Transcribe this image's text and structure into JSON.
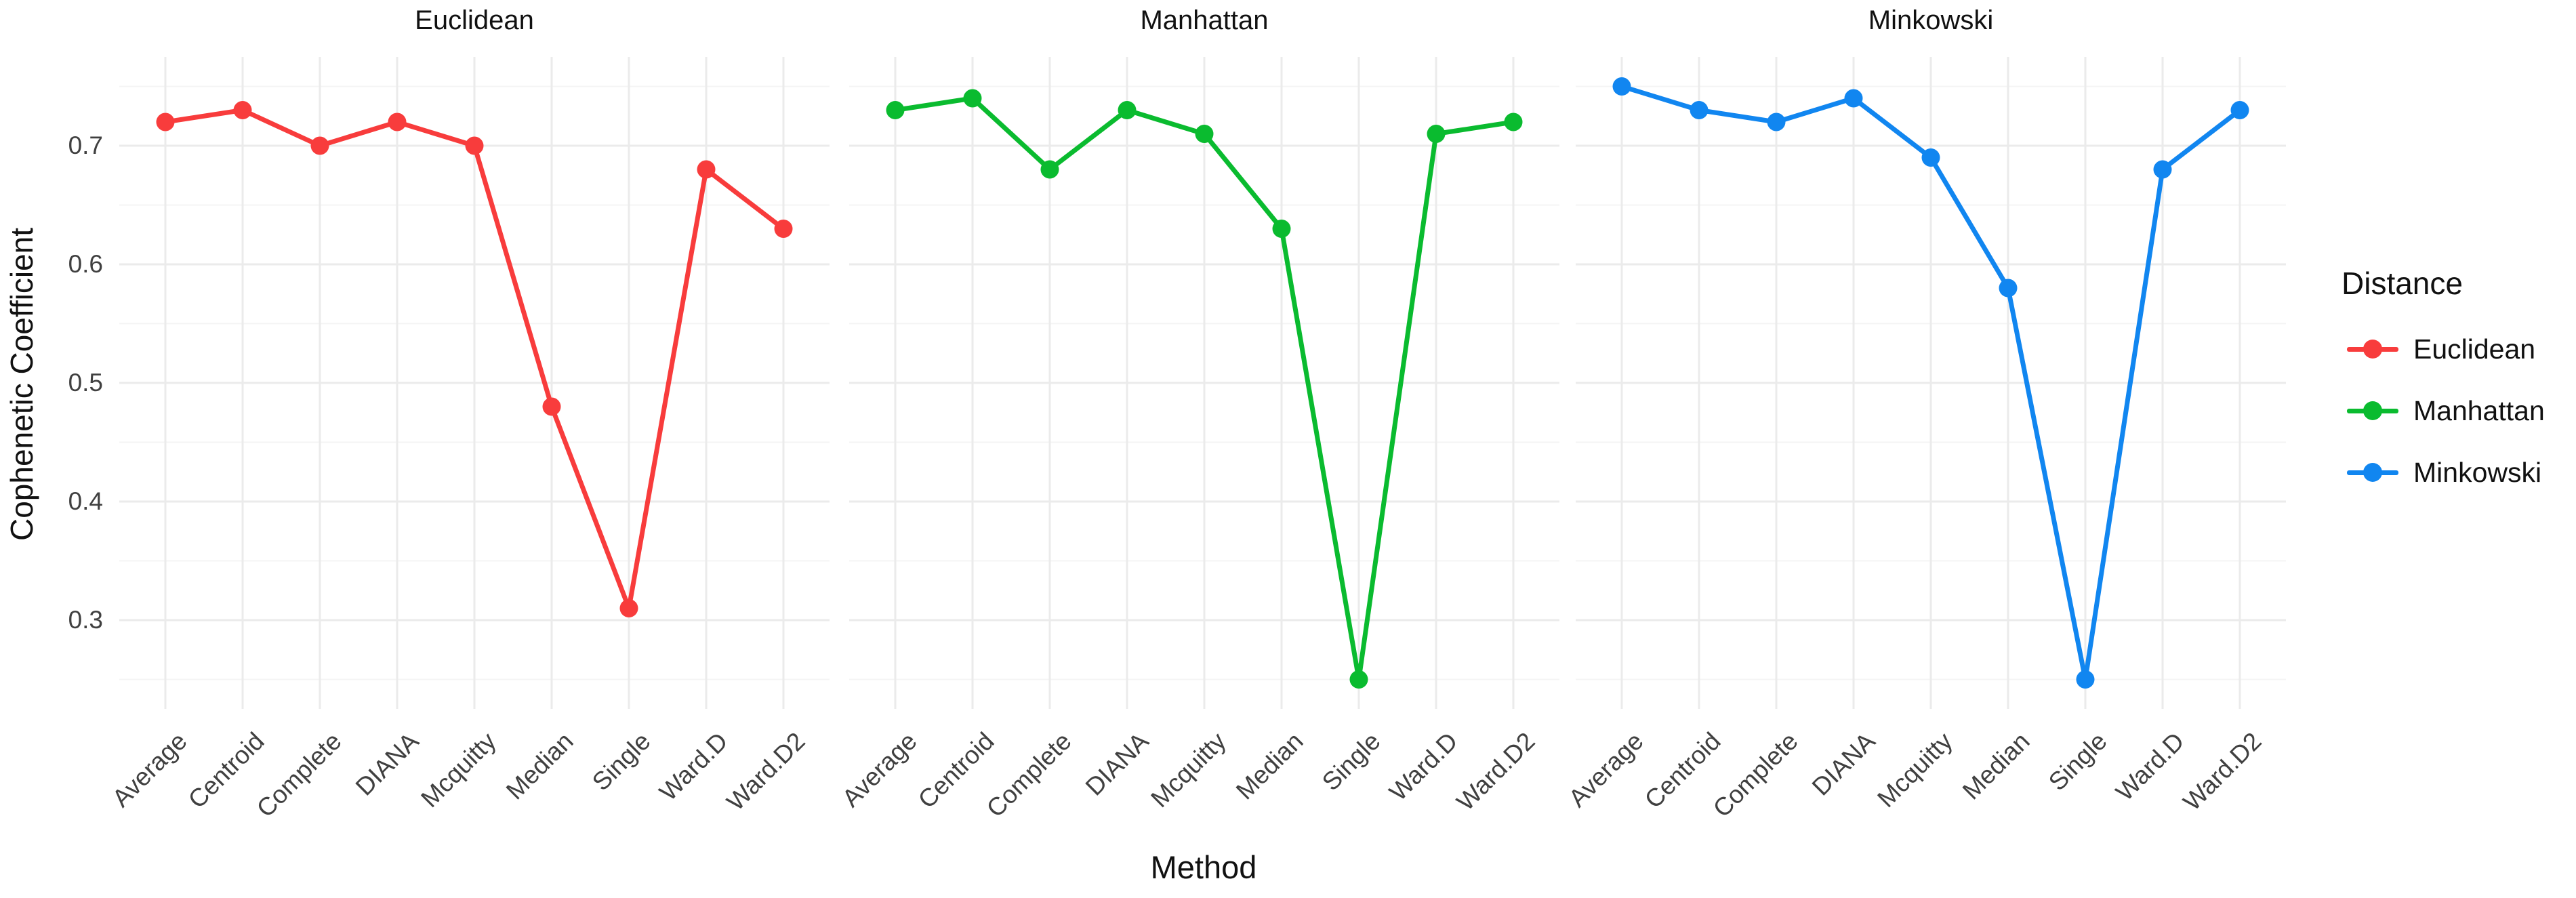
{
  "chart_data": {
    "type": "line",
    "title": "",
    "xlabel": "Method",
    "ylabel": "Cophenetic Coefficient",
    "categories": [
      "Average",
      "Centroid",
      "Complete",
      "DIANA",
      "Mcquitty",
      "Median",
      "Single",
      "Ward.D",
      "Ward.D2"
    ],
    "y_axis": {
      "tick_labels": [
        "0.7",
        "0.6",
        "0.5",
        "0.4",
        "0.3"
      ],
      "tick_values": [
        0.7,
        0.6,
        0.5,
        0.4,
        0.3
      ],
      "minor_tick_values": [
        0.75,
        0.65,
        0.55,
        0.45,
        0.35,
        0.25
      ],
      "ylim": [
        0.225,
        0.775
      ],
      "grid": true
    },
    "facets": [
      {
        "title": "Euclidean",
        "series": "Euclidean",
        "color": "#f83c3c",
        "values": [
          0.72,
          0.73,
          0.7,
          0.72,
          0.7,
          0.48,
          0.31,
          0.68,
          0.63
        ]
      },
      {
        "title": "Manhattan",
        "series": "Manhattan",
        "color": "#0abb2f",
        "values": [
          0.73,
          0.74,
          0.68,
          0.73,
          0.71,
          0.63,
          0.25,
          0.71,
          0.72
        ]
      },
      {
        "title": "Minkowski",
        "series": "Minkowski",
        "color": "#1186f0",
        "values": [
          0.75,
          0.73,
          0.72,
          0.74,
          0.69,
          0.58,
          0.25,
          0.68,
          0.73
        ]
      }
    ],
    "legend": {
      "title": "Distance",
      "position": "right",
      "entries": [
        {
          "label": "Euclidean",
          "color": "#f83c3c"
        },
        {
          "label": "Manhattan",
          "color": "#0abb2f"
        },
        {
          "label": "Minkowski",
          "color": "#1186f0"
        }
      ]
    },
    "style": {
      "major_grid_color": "#ebebeb",
      "minor_grid_color": "#f4f4f4",
      "background": "#ffffff",
      "marker": "circle",
      "line_width": 7,
      "marker_radius": 13.5
    }
  }
}
